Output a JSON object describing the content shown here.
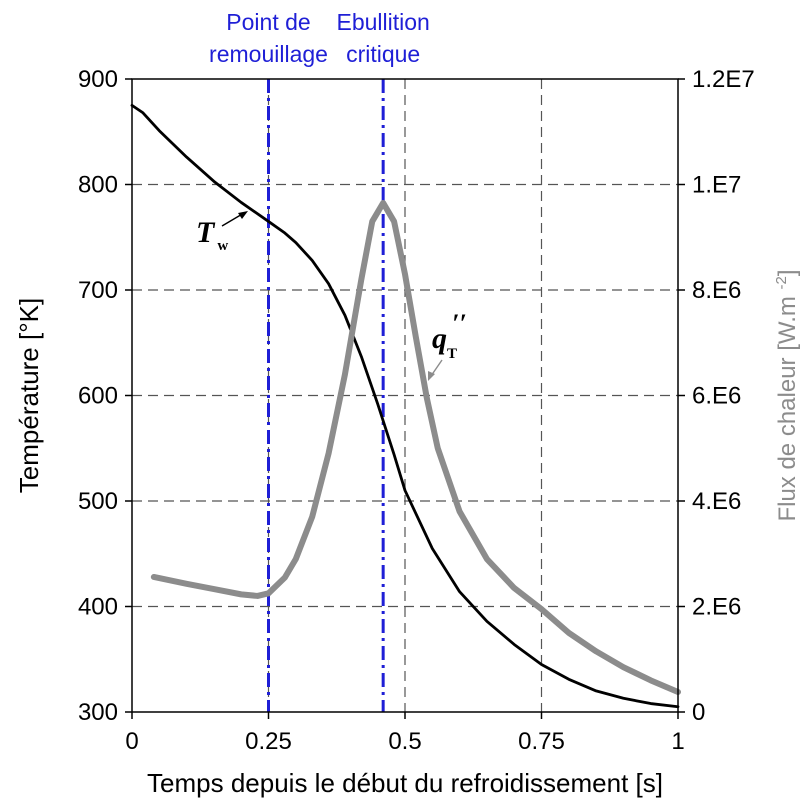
{
  "chart_data": {
    "type": "line",
    "xlabel": "Temps depuis le début du refroidissement [s]",
    "ylabel": "Température [°K]",
    "y2label": "Flux de chaleur [W.m -2]",
    "xlim": [
      0,
      1
    ],
    "ylim": [
      300,
      900
    ],
    "y2lim": [
      0,
      12000000
    ],
    "x_ticks": [
      "0",
      "0.25",
      "0.5",
      "0.75",
      "1"
    ],
    "y_ticks": [
      "300",
      "400",
      "500",
      "600",
      "700",
      "800",
      "900"
    ],
    "y2_ticks": [
      "0",
      "2.E6",
      "4.E6",
      "6.E6",
      "8.E6",
      "1.E7",
      "1.2E7"
    ],
    "grid": true,
    "colors": {
      "temperature": "#000000",
      "heat_flux": "#8c8c8c",
      "markers": "#1f1fd6",
      "grid": "#555555"
    },
    "vertical_markers": [
      {
        "x": 0.25,
        "label_line1": "Point de",
        "label_line2": "remouillage"
      },
      {
        "x": 0.46,
        "label_line1": "Ebullition",
        "label_line2": "critique"
      }
    ],
    "series": [
      {
        "name": "T_w",
        "label_main": "T",
        "label_sub": "w",
        "axis": "left",
        "points": [
          [
            0,
            875
          ],
          [
            0.02,
            868
          ],
          [
            0.05,
            851
          ],
          [
            0.1,
            826
          ],
          [
            0.15,
            803
          ],
          [
            0.2,
            783
          ],
          [
            0.25,
            765
          ],
          [
            0.28,
            754
          ],
          [
            0.3,
            745
          ],
          [
            0.33,
            728
          ],
          [
            0.36,
            706
          ],
          [
            0.39,
            676
          ],
          [
            0.42,
            637
          ],
          [
            0.45,
            592
          ],
          [
            0.48,
            544
          ],
          [
            0.5,
            510
          ],
          [
            0.55,
            455
          ],
          [
            0.6,
            414
          ],
          [
            0.65,
            386
          ],
          [
            0.7,
            364
          ],
          [
            0.75,
            345
          ],
          [
            0.8,
            331
          ],
          [
            0.85,
            320
          ],
          [
            0.9,
            313
          ],
          [
            0.95,
            308
          ],
          [
            1.0,
            305
          ]
        ]
      },
      {
        "name": "q''_T",
        "label_main": "q",
        "label_sub": "T",
        "axis": "right",
        "points": [
          [
            0.04,
            2560000
          ],
          [
            0.1,
            2430000
          ],
          [
            0.15,
            2330000
          ],
          [
            0.2,
            2230000
          ],
          [
            0.23,
            2200000
          ],
          [
            0.25,
            2250000
          ],
          [
            0.28,
            2550000
          ],
          [
            0.3,
            2900000
          ],
          [
            0.33,
            3700000
          ],
          [
            0.36,
            4900000
          ],
          [
            0.39,
            6400000
          ],
          [
            0.42,
            8200000
          ],
          [
            0.44,
            9300000
          ],
          [
            0.46,
            9650000
          ],
          [
            0.48,
            9300000
          ],
          [
            0.5,
            8300000
          ],
          [
            0.52,
            7100000
          ],
          [
            0.54,
            5950000
          ],
          [
            0.56,
            5000000
          ],
          [
            0.6,
            3800000
          ],
          [
            0.65,
            2900000
          ],
          [
            0.7,
            2350000
          ],
          [
            0.75,
            1950000
          ],
          [
            0.8,
            1500000
          ],
          [
            0.85,
            1150000
          ],
          [
            0.9,
            850000
          ],
          [
            0.95,
            600000
          ],
          [
            1.0,
            380000
          ]
        ]
      }
    ]
  }
}
